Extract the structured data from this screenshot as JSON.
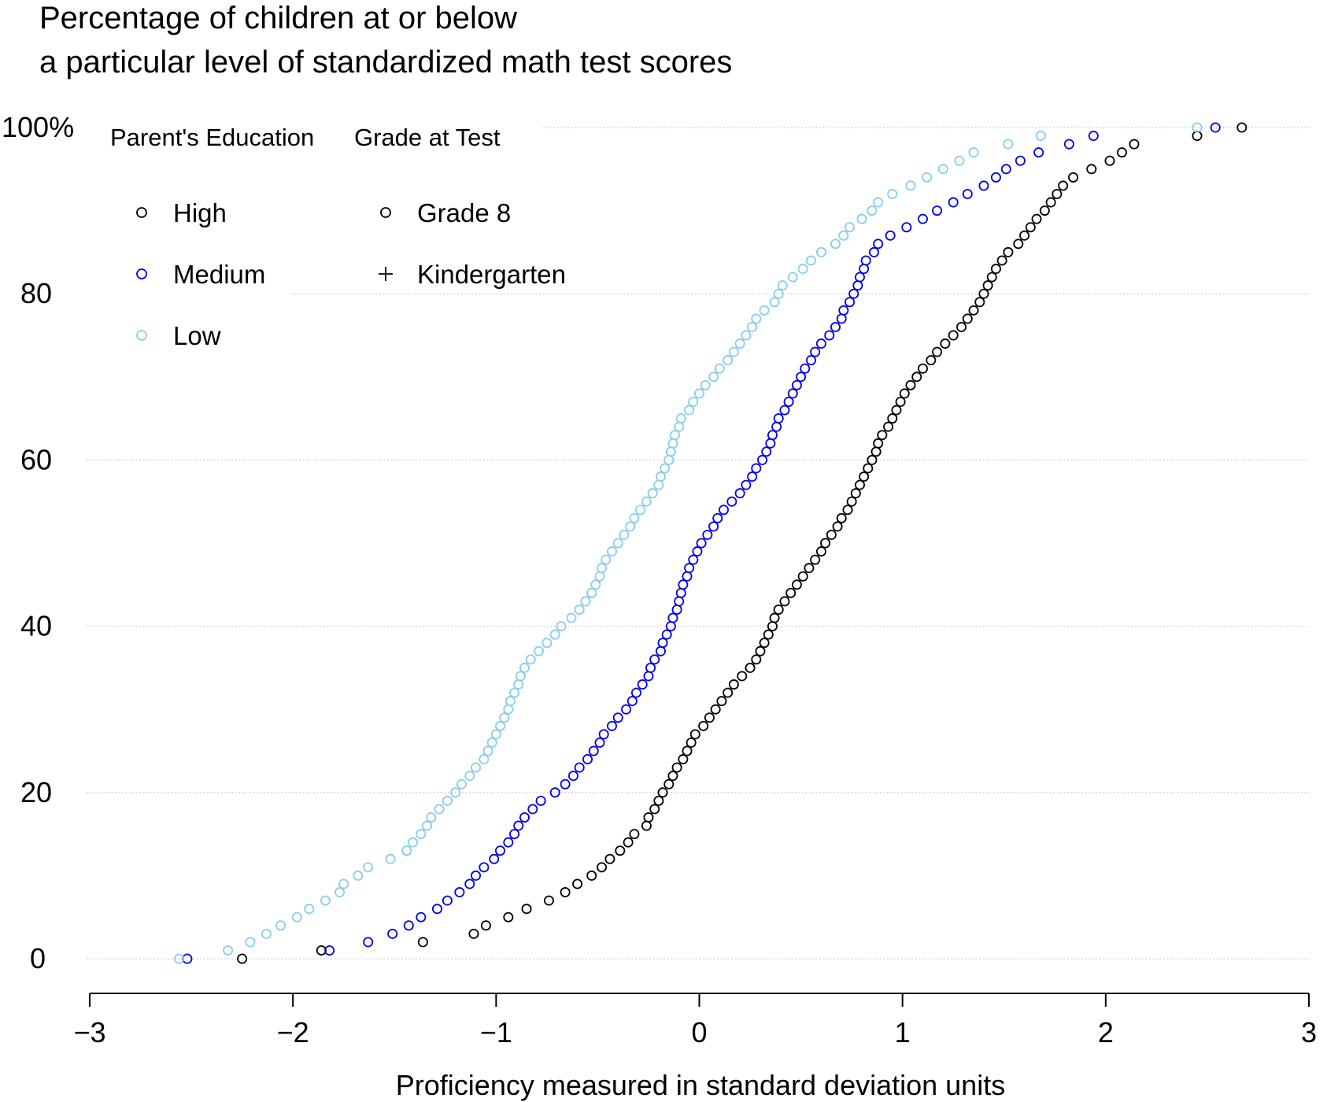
{
  "chart_data": {
    "type": "scatter",
    "title_lines": [
      "Percentage of children at or below",
      "a particular level of standardized math test scores"
    ],
    "xlabel": "Proficiency measured in standard deviation units",
    "ylabel": "",
    "xlim": [
      -3,
      3
    ],
    "ylim": [
      0,
      100
    ],
    "x_ticks": [
      -3,
      -2,
      -1,
      0,
      1,
      2,
      3
    ],
    "x_tick_labels": [
      "−3",
      "−2",
      "−1",
      "0",
      "1",
      "2",
      "3"
    ],
    "y_ticks": [
      0,
      20,
      40,
      60,
      80,
      100
    ],
    "y_tick_labels": [
      "0",
      "20",
      "40",
      "60",
      "80",
      "100%"
    ],
    "grid": "horizontal dotted",
    "legend": {
      "placement": "top-left",
      "groups": [
        {
          "title": "Parent's Education",
          "entries": [
            {
              "label": "High",
              "symbol": "circle",
              "color": "#000000"
            },
            {
              "label": "Medium",
              "symbol": "circle",
              "color": "#0000ee"
            },
            {
              "label": "Low",
              "symbol": "circle",
              "color": "#87ceeb"
            }
          ]
        },
        {
          "title": "Grade at Test",
          "entries": [
            {
              "label": "Grade 8",
              "symbol": "circle",
              "color": "#000000"
            },
            {
              "label": "Kindergarten",
              "symbol": "plus",
              "color": "#000000"
            }
          ]
        }
      ]
    },
    "series": [
      {
        "name": "High",
        "color": "#000000",
        "marker": "circle",
        "points": [
          [
            -2.25,
            0
          ],
          [
            -1.86,
            1
          ],
          [
            -1.36,
            2
          ],
          [
            -1.11,
            3
          ],
          [
            -1.05,
            4
          ],
          [
            -0.94,
            5
          ],
          [
            -0.85,
            6
          ],
          [
            -0.74,
            7
          ],
          [
            -0.66,
            8
          ],
          [
            -0.6,
            9
          ],
          [
            -0.53,
            10
          ],
          [
            -0.48,
            11
          ],
          [
            -0.44,
            12
          ],
          [
            -0.39,
            13
          ],
          [
            -0.35,
            14
          ],
          [
            -0.32,
            15
          ],
          [
            -0.26,
            16
          ],
          [
            -0.25,
            17
          ],
          [
            -0.22,
            18
          ],
          [
            -0.2,
            19
          ],
          [
            -0.18,
            20
          ],
          [
            -0.15,
            21
          ],
          [
            -0.13,
            22
          ],
          [
            -0.11,
            23
          ],
          [
            -0.08,
            24
          ],
          [
            -0.06,
            25
          ],
          [
            -0.04,
            26
          ],
          [
            -0.02,
            27
          ],
          [
            0.02,
            28
          ],
          [
            0.05,
            29
          ],
          [
            0.08,
            30
          ],
          [
            0.11,
            31
          ],
          [
            0.14,
            32
          ],
          [
            0.17,
            33
          ],
          [
            0.21,
            34
          ],
          [
            0.25,
            35
          ],
          [
            0.28,
            36
          ],
          [
            0.3,
            37
          ],
          [
            0.32,
            38
          ],
          [
            0.34,
            39
          ],
          [
            0.36,
            40
          ],
          [
            0.37,
            41
          ],
          [
            0.39,
            42
          ],
          [
            0.42,
            43
          ],
          [
            0.45,
            44
          ],
          [
            0.48,
            45
          ],
          [
            0.51,
            46
          ],
          [
            0.54,
            47
          ],
          [
            0.57,
            48
          ],
          [
            0.6,
            49
          ],
          [
            0.62,
            50
          ],
          [
            0.65,
            51
          ],
          [
            0.68,
            52
          ],
          [
            0.7,
            53
          ],
          [
            0.73,
            54
          ],
          [
            0.75,
            55
          ],
          [
            0.77,
            56
          ],
          [
            0.79,
            57
          ],
          [
            0.81,
            58
          ],
          [
            0.83,
            59
          ],
          [
            0.85,
            60
          ],
          [
            0.87,
            61
          ],
          [
            0.88,
            62
          ],
          [
            0.9,
            63
          ],
          [
            0.93,
            64
          ],
          [
            0.95,
            65
          ],
          [
            0.97,
            66
          ],
          [
            0.99,
            67
          ],
          [
            1.01,
            68
          ],
          [
            1.04,
            69
          ],
          [
            1.07,
            70
          ],
          [
            1.1,
            71
          ],
          [
            1.14,
            72
          ],
          [
            1.17,
            73
          ],
          [
            1.21,
            74
          ],
          [
            1.25,
            75
          ],
          [
            1.29,
            76
          ],
          [
            1.32,
            77
          ],
          [
            1.35,
            78
          ],
          [
            1.38,
            79
          ],
          [
            1.4,
            80
          ],
          [
            1.42,
            81
          ],
          [
            1.44,
            82
          ],
          [
            1.46,
            83
          ],
          [
            1.49,
            84
          ],
          [
            1.52,
            85
          ],
          [
            1.57,
            86
          ],
          [
            1.6,
            87
          ],
          [
            1.63,
            88
          ],
          [
            1.66,
            89
          ],
          [
            1.7,
            90
          ],
          [
            1.73,
            91
          ],
          [
            1.76,
            92
          ],
          [
            1.79,
            93
          ],
          [
            1.84,
            94
          ],
          [
            1.93,
            95
          ],
          [
            2.02,
            96
          ],
          [
            2.08,
            97
          ],
          [
            2.14,
            98
          ],
          [
            2.45,
            99
          ],
          [
            2.67,
            100
          ]
        ]
      },
      {
        "name": "Medium",
        "color": "#0000ee",
        "marker": "circle",
        "points": [
          [
            -2.52,
            0
          ],
          [
            -1.82,
            1
          ],
          [
            -1.63,
            2
          ],
          [
            -1.51,
            3
          ],
          [
            -1.43,
            4
          ],
          [
            -1.37,
            5
          ],
          [
            -1.29,
            6
          ],
          [
            -1.24,
            7
          ],
          [
            -1.18,
            8
          ],
          [
            -1.13,
            9
          ],
          [
            -1.1,
            10
          ],
          [
            -1.06,
            11
          ],
          [
            -1.01,
            12
          ],
          [
            -0.98,
            13
          ],
          [
            -0.94,
            14
          ],
          [
            -0.91,
            15
          ],
          [
            -0.89,
            16
          ],
          [
            -0.86,
            17
          ],
          [
            -0.82,
            18
          ],
          [
            -0.78,
            19
          ],
          [
            -0.71,
            20
          ],
          [
            -0.66,
            21
          ],
          [
            -0.62,
            22
          ],
          [
            -0.59,
            23
          ],
          [
            -0.55,
            24
          ],
          [
            -0.52,
            25
          ],
          [
            -0.49,
            26
          ],
          [
            -0.47,
            27
          ],
          [
            -0.43,
            28
          ],
          [
            -0.4,
            29
          ],
          [
            -0.36,
            30
          ],
          [
            -0.33,
            31
          ],
          [
            -0.31,
            32
          ],
          [
            -0.28,
            33
          ],
          [
            -0.25,
            34
          ],
          [
            -0.24,
            35
          ],
          [
            -0.22,
            36
          ],
          [
            -0.19,
            37
          ],
          [
            -0.18,
            38
          ],
          [
            -0.16,
            39
          ],
          [
            -0.14,
            40
          ],
          [
            -0.13,
            41
          ],
          [
            -0.11,
            42
          ],
          [
            -0.1,
            43
          ],
          [
            -0.09,
            44
          ],
          [
            -0.08,
            45
          ],
          [
            -0.06,
            46
          ],
          [
            -0.05,
            47
          ],
          [
            -0.03,
            48
          ],
          [
            -0.01,
            49
          ],
          [
            0.01,
            50
          ],
          [
            0.04,
            51
          ],
          [
            0.07,
            52
          ],
          [
            0.09,
            53
          ],
          [
            0.12,
            54
          ],
          [
            0.16,
            55
          ],
          [
            0.2,
            56
          ],
          [
            0.23,
            57
          ],
          [
            0.26,
            58
          ],
          [
            0.28,
            59
          ],
          [
            0.31,
            60
          ],
          [
            0.33,
            61
          ],
          [
            0.35,
            62
          ],
          [
            0.36,
            63
          ],
          [
            0.38,
            64
          ],
          [
            0.39,
            65
          ],
          [
            0.42,
            66
          ],
          [
            0.44,
            67
          ],
          [
            0.46,
            68
          ],
          [
            0.48,
            69
          ],
          [
            0.5,
            70
          ],
          [
            0.52,
            71
          ],
          [
            0.55,
            72
          ],
          [
            0.57,
            73
          ],
          [
            0.6,
            74
          ],
          [
            0.64,
            75
          ],
          [
            0.67,
            76
          ],
          [
            0.7,
            77
          ],
          [
            0.71,
            78
          ],
          [
            0.74,
            79
          ],
          [
            0.76,
            80
          ],
          [
            0.78,
            81
          ],
          [
            0.79,
            82
          ],
          [
            0.81,
            83
          ],
          [
            0.82,
            84
          ],
          [
            0.86,
            85
          ],
          [
            0.88,
            86
          ],
          [
            0.94,
            87
          ],
          [
            1.02,
            88
          ],
          [
            1.1,
            89
          ],
          [
            1.17,
            90
          ],
          [
            1.25,
            91
          ],
          [
            1.32,
            92
          ],
          [
            1.4,
            93
          ],
          [
            1.46,
            94
          ],
          [
            1.51,
            95
          ],
          [
            1.58,
            96
          ],
          [
            1.67,
            97
          ],
          [
            1.82,
            98
          ],
          [
            1.94,
            99
          ],
          [
            2.54,
            100
          ]
        ]
      },
      {
        "name": "Low",
        "color": "#87ceeb",
        "marker": "circle",
        "points": [
          [
            -2.56,
            0
          ],
          [
            -2.32,
            1
          ],
          [
            -2.21,
            2
          ],
          [
            -2.13,
            3
          ],
          [
            -2.06,
            4
          ],
          [
            -1.98,
            5
          ],
          [
            -1.92,
            6
          ],
          [
            -1.84,
            7
          ],
          [
            -1.77,
            8
          ],
          [
            -1.75,
            9
          ],
          [
            -1.68,
            10
          ],
          [
            -1.63,
            11
          ],
          [
            -1.52,
            12
          ],
          [
            -1.44,
            13
          ],
          [
            -1.41,
            14
          ],
          [
            -1.37,
            15
          ],
          [
            -1.34,
            16
          ],
          [
            -1.32,
            17
          ],
          [
            -1.28,
            18
          ],
          [
            -1.24,
            19
          ],
          [
            -1.2,
            20
          ],
          [
            -1.17,
            21
          ],
          [
            -1.13,
            22
          ],
          [
            -1.1,
            23
          ],
          [
            -1.06,
            24
          ],
          [
            -1.04,
            25
          ],
          [
            -1.02,
            26
          ],
          [
            -1.0,
            27
          ],
          [
            -0.98,
            28
          ],
          [
            -0.96,
            29
          ],
          [
            -0.94,
            30
          ],
          [
            -0.93,
            31
          ],
          [
            -0.91,
            32
          ],
          [
            -0.89,
            33
          ],
          [
            -0.88,
            34
          ],
          [
            -0.86,
            35
          ],
          [
            -0.83,
            36
          ],
          [
            -0.79,
            37
          ],
          [
            -0.75,
            38
          ],
          [
            -0.71,
            39
          ],
          [
            -0.68,
            40
          ],
          [
            -0.63,
            41
          ],
          [
            -0.59,
            42
          ],
          [
            -0.56,
            43
          ],
          [
            -0.53,
            44
          ],
          [
            -0.51,
            45
          ],
          [
            -0.49,
            46
          ],
          [
            -0.48,
            47
          ],
          [
            -0.46,
            48
          ],
          [
            -0.43,
            49
          ],
          [
            -0.4,
            50
          ],
          [
            -0.37,
            51
          ],
          [
            -0.34,
            52
          ],
          [
            -0.32,
            53
          ],
          [
            -0.29,
            54
          ],
          [
            -0.26,
            55
          ],
          [
            -0.23,
            56
          ],
          [
            -0.2,
            57
          ],
          [
            -0.19,
            58
          ],
          [
            -0.17,
            59
          ],
          [
            -0.15,
            60
          ],
          [
            -0.14,
            61
          ],
          [
            -0.13,
            62
          ],
          [
            -0.12,
            63
          ],
          [
            -0.1,
            64
          ],
          [
            -0.09,
            65
          ],
          [
            -0.05,
            66
          ],
          [
            -0.03,
            67
          ],
          [
            0.0,
            68
          ],
          [
            0.03,
            69
          ],
          [
            0.07,
            70
          ],
          [
            0.1,
            71
          ],
          [
            0.14,
            72
          ],
          [
            0.17,
            73
          ],
          [
            0.2,
            74
          ],
          [
            0.23,
            75
          ],
          [
            0.26,
            76
          ],
          [
            0.28,
            77
          ],
          [
            0.32,
            78
          ],
          [
            0.37,
            79
          ],
          [
            0.39,
            80
          ],
          [
            0.41,
            81
          ],
          [
            0.46,
            82
          ],
          [
            0.51,
            83
          ],
          [
            0.55,
            84
          ],
          [
            0.6,
            85
          ],
          [
            0.67,
            86
          ],
          [
            0.71,
            87
          ],
          [
            0.74,
            88
          ],
          [
            0.8,
            89
          ],
          [
            0.85,
            90
          ],
          [
            0.88,
            91
          ],
          [
            0.95,
            92
          ],
          [
            1.04,
            93
          ],
          [
            1.12,
            94
          ],
          [
            1.2,
            95
          ],
          [
            1.28,
            96
          ],
          [
            1.35,
            97
          ],
          [
            1.52,
            98
          ],
          [
            1.68,
            99
          ],
          [
            2.45,
            100
          ]
        ]
      }
    ]
  }
}
